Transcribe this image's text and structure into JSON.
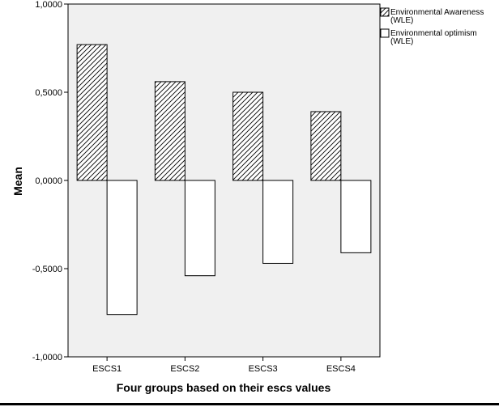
{
  "chart_data": {
    "type": "bar",
    "categories": [
      "ESCS1",
      "ESCS2",
      "ESCS3",
      "ESCS4"
    ],
    "series": [
      {
        "name": "Environmental Awareness (WLE)",
        "name_lines": [
          "Environmental Awareness",
          "(WLE)"
        ],
        "values": [
          0.77,
          0.56,
          0.5,
          0.39
        ],
        "fill": "hatched",
        "color": "#000000"
      },
      {
        "name": "Environmental optimism (WLE)",
        "name_lines": [
          "Environmental optimism",
          "(WLE)"
        ],
        "values": [
          -0.76,
          -0.54,
          -0.47,
          -0.41
        ],
        "fill": "#ffffff",
        "color": "#000000"
      }
    ],
    "xlabel": "Four groups based on their escs values",
    "ylabel": "Mean",
    "ylim": [
      -1.0,
      1.0
    ],
    "yticks": [
      1.0,
      0.5,
      0.0,
      -0.5,
      -1.0
    ],
    "ytick_labels": [
      "1,0000",
      "0,5000",
      "0,0000",
      "-0,5000",
      "-1,0000"
    ],
    "grid": false,
    "legend_position": "top-right",
    "plot_background": "#f0f0f0"
  }
}
